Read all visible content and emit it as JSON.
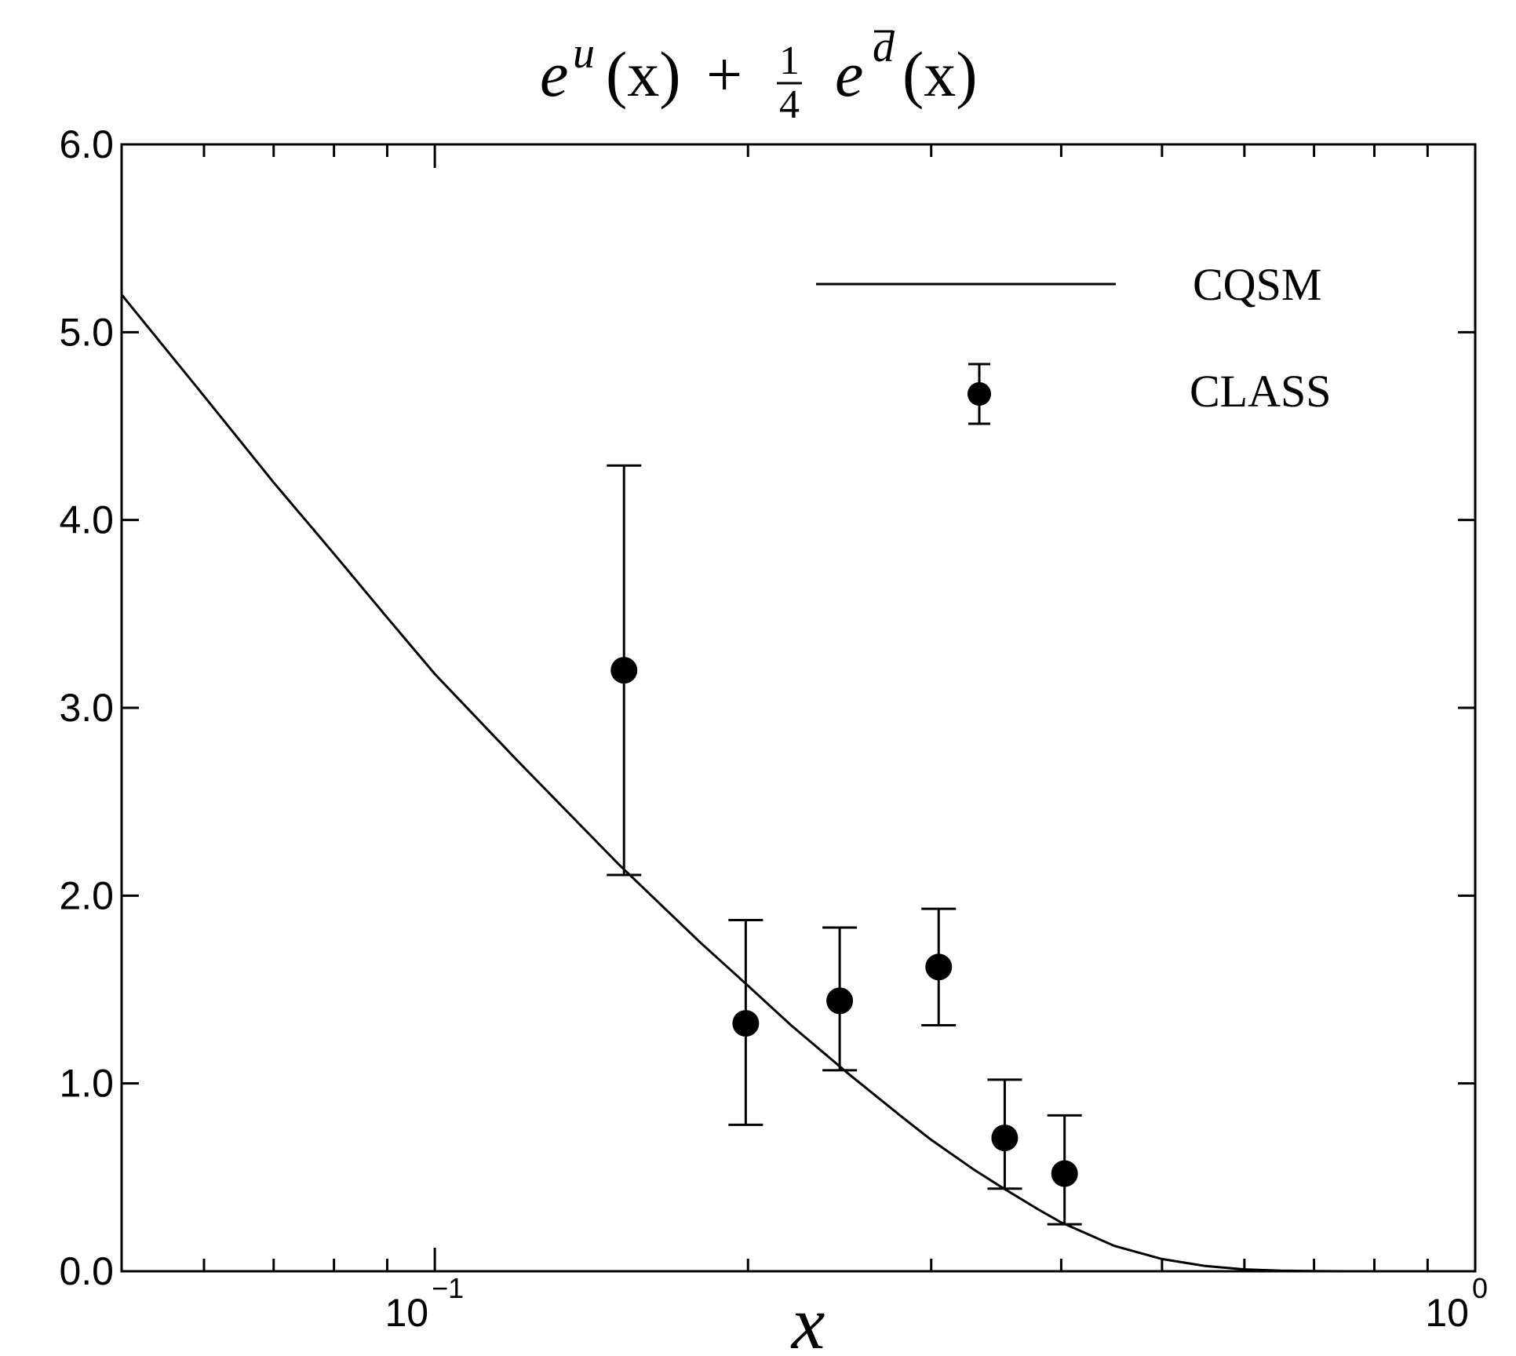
{
  "chart_data": {
    "type": "scatter",
    "title": {
      "e1": "e",
      "sup1": "u",
      "arg1": "(x)",
      "plus": "+",
      "frac_num": "1",
      "frac_den": "4",
      "e2": "e",
      "sup2": "d",
      "arg2": "(x)"
    },
    "xlabel": "x",
    "ylabel": "",
    "xscale": "log",
    "xlim": [
      0.05,
      1.0
    ],
    "ylim": [
      0.0,
      6.0
    ],
    "yticks": [
      {
        "value": 0.0,
        "label": "0.0"
      },
      {
        "value": 1.0,
        "label": "1.0"
      },
      {
        "value": 2.0,
        "label": "2.0"
      },
      {
        "value": 3.0,
        "label": "3.0"
      },
      {
        "value": 4.0,
        "label": "4.0"
      },
      {
        "value": 5.0,
        "label": "5.0"
      },
      {
        "value": 6.0,
        "label": "6.0"
      }
    ],
    "xmajor": [
      {
        "value": 0.1,
        "base": "10",
        "exp": "−1"
      },
      {
        "value": 1.0,
        "base": "10",
        "exp": "0"
      }
    ],
    "xminor": [
      0.06,
      0.07,
      0.08,
      0.09,
      0.2,
      0.3,
      0.4,
      0.5,
      0.6,
      0.7,
      0.8,
      0.9
    ],
    "series": [
      {
        "name": "CQSM",
        "kind": "line",
        "x": [
          0.05,
          0.06,
          0.07,
          0.08,
          0.09,
          0.1,
          0.12,
          0.15,
          0.18,
          0.2,
          0.22,
          0.25,
          0.28,
          0.3,
          0.33,
          0.35,
          0.38,
          0.4,
          0.45,
          0.5,
          0.55,
          0.6,
          0.65,
          0.7,
          0.75,
          0.8
        ],
        "y": [
          5.2,
          4.66,
          4.2,
          3.82,
          3.48,
          3.18,
          2.72,
          2.17,
          1.75,
          1.52,
          1.31,
          1.05,
          0.83,
          0.7,
          0.54,
          0.45,
          0.33,
          0.26,
          0.135,
          0.065,
          0.028,
          0.01,
          0.003,
          0.001,
          0.0,
          0.0
        ]
      },
      {
        "name": "CLASS",
        "kind": "errorbar",
        "x": [
          0.152,
          0.199,
          0.245,
          0.305,
          0.353,
          0.403
        ],
        "y": [
          3.2,
          1.32,
          1.44,
          1.62,
          0.71,
          0.52
        ],
        "yerr_low": [
          2.11,
          0.78,
          1.07,
          1.31,
          0.44,
          0.25
        ],
        "yerr_high": [
          4.29,
          1.87,
          1.83,
          1.93,
          1.02,
          0.83
        ]
      }
    ],
    "legend": {
      "position": "top-right",
      "entries": [
        {
          "label": "CQSM",
          "kind": "line"
        },
        {
          "label": "CLASS",
          "kind": "errorbar"
        }
      ]
    }
  }
}
